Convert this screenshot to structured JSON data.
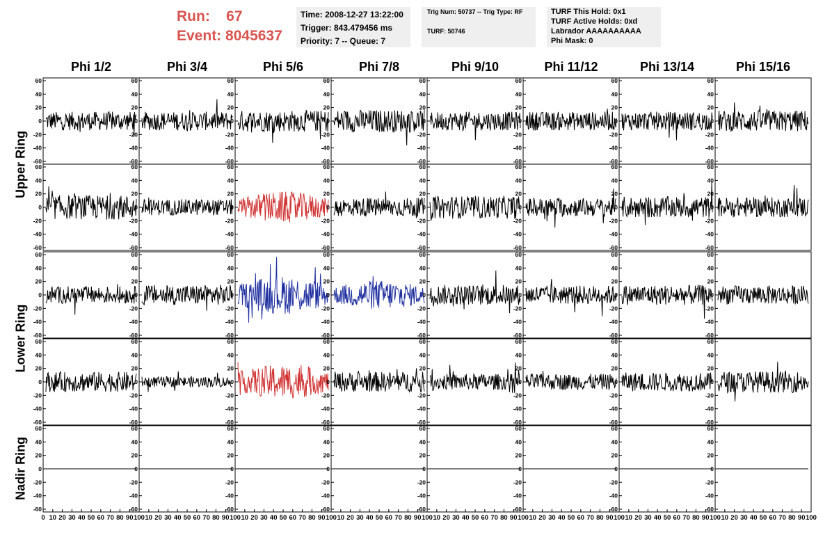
{
  "header": {
    "run_label": "Run:",
    "run_value": "67",
    "event_label": "Event:",
    "event_value": "8045637",
    "time": "Time: 2008-12-27 13:22:00",
    "trigger": "Trigger: 843.479456 ms",
    "priority": "Priority: 7 -- Queue: 7",
    "trig_num": "Trig Num: 50737 -- Trig Type: RF",
    "turf": "TURF: 50746",
    "turf_this_hold": "TURF This Hold: 0x1",
    "turf_active_holds": "TURF Active Holds: 0xd",
    "labrador": "Labrador AAAAAAAAAA",
    "phi_mask": "Phi Mask: 0"
  },
  "columns": [
    "Phi 1/2",
    "Phi 3/4",
    "Phi 5/6",
    "Phi 7/8",
    "Phi 9/10",
    "Phi 11/12",
    "Phi 13/14",
    "Phi 15/16"
  ],
  "rows": [
    "Upper Ring",
    "Lower Ring",
    "Nadir Ring"
  ],
  "colors": {
    "trace": "#000000",
    "highlight_red": "#d03030",
    "highlight_blue": "#2030a0",
    "header_red": "#d9534f",
    "info_bg": "#efefef"
  },
  "chart_data": {
    "type": "line",
    "description_grid": "8 columns x 5 rows of waveform panels",
    "x_ticks": [
      "0",
      "10",
      "20",
      "30",
      "40",
      "50",
      "60",
      "70",
      "80",
      "90",
      "100"
    ],
    "y_ticks": [
      "60",
      "40",
      "20",
      "0",
      "-20",
      "-40",
      "-60"
    ],
    "xlim": [
      0,
      100
    ],
    "ylim": [
      -60,
      60
    ],
    "panels": [
      {
        "row": 0,
        "col": 0,
        "amp": 14,
        "color": "black"
      },
      {
        "row": 0,
        "col": 1,
        "amp": 14,
        "color": "black"
      },
      {
        "row": 0,
        "col": 2,
        "amp": 16,
        "color": "black"
      },
      {
        "row": 0,
        "col": 3,
        "amp": 17,
        "color": "black"
      },
      {
        "row": 0,
        "col": 4,
        "amp": 14,
        "color": "black"
      },
      {
        "row": 0,
        "col": 5,
        "amp": 14,
        "color": "black"
      },
      {
        "row": 0,
        "col": 6,
        "amp": 14,
        "color": "black"
      },
      {
        "row": 0,
        "col": 7,
        "amp": 16,
        "color": "black"
      },
      {
        "row": 1,
        "col": 0,
        "amp": 18,
        "color": "black"
      },
      {
        "row": 1,
        "col": 1,
        "amp": 12,
        "color": "black"
      },
      {
        "row": 1,
        "col": 2,
        "amp": 18,
        "color": "red"
      },
      {
        "row": 1,
        "col": 3,
        "amp": 14,
        "color": "black"
      },
      {
        "row": 1,
        "col": 4,
        "amp": 17,
        "color": "black"
      },
      {
        "row": 1,
        "col": 5,
        "amp": 14,
        "color": "black"
      },
      {
        "row": 1,
        "col": 6,
        "amp": 16,
        "color": "black"
      },
      {
        "row": 1,
        "col": 7,
        "amp": 15,
        "color": "black"
      },
      {
        "row": 2,
        "col": 0,
        "amp": 13,
        "color": "black"
      },
      {
        "row": 2,
        "col": 1,
        "amp": 15,
        "color": "black"
      },
      {
        "row": 2,
        "col": 2,
        "amp": 22,
        "color": "blue"
      },
      {
        "row": 2,
        "col": 3,
        "amp": 17,
        "color": "blue"
      },
      {
        "row": 2,
        "col": 4,
        "amp": 15,
        "color": "black"
      },
      {
        "row": 2,
        "col": 5,
        "amp": 14,
        "color": "black"
      },
      {
        "row": 2,
        "col": 6,
        "amp": 15,
        "color": "black"
      },
      {
        "row": 2,
        "col": 7,
        "amp": 14,
        "color": "black"
      },
      {
        "row": 3,
        "col": 0,
        "amp": 15,
        "color": "black"
      },
      {
        "row": 3,
        "col": 1,
        "amp": 8,
        "color": "black"
      },
      {
        "row": 3,
        "col": 2,
        "amp": 20,
        "color": "red"
      },
      {
        "row": 3,
        "col": 3,
        "amp": 15,
        "color": "black"
      },
      {
        "row": 3,
        "col": 4,
        "amp": 12,
        "color": "black"
      },
      {
        "row": 3,
        "col": 5,
        "amp": 12,
        "color": "black"
      },
      {
        "row": 3,
        "col": 6,
        "amp": 14,
        "color": "black"
      },
      {
        "row": 3,
        "col": 7,
        "amp": 16,
        "color": "black"
      },
      {
        "row": 4,
        "col": 0,
        "amp": 0,
        "color": "black"
      },
      {
        "row": 4,
        "col": 1,
        "amp": 0,
        "color": "black"
      },
      {
        "row": 4,
        "col": 2,
        "amp": 0,
        "color": "black"
      },
      {
        "row": 4,
        "col": 3,
        "amp": 0,
        "color": "black"
      },
      {
        "row": 4,
        "col": 4,
        "amp": 0,
        "color": "black"
      },
      {
        "row": 4,
        "col": 5,
        "amp": 0,
        "color": "black"
      },
      {
        "row": 4,
        "col": 6,
        "amp": 0,
        "color": "black"
      },
      {
        "row": 4,
        "col": 7,
        "amp": 0,
        "color": "black"
      }
    ]
  }
}
